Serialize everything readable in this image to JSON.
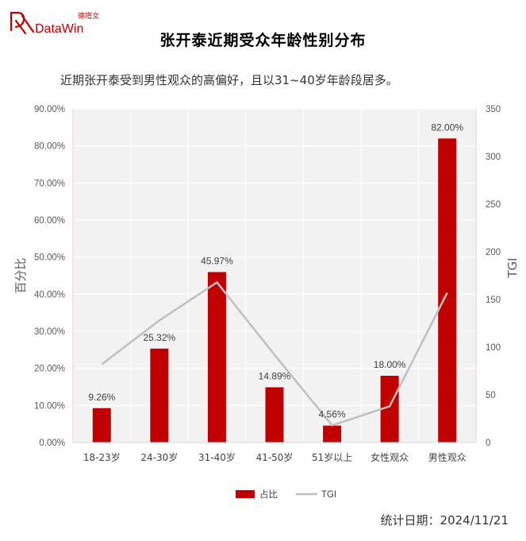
{
  "logo": {
    "brand": "DataWin",
    "cn": "德塔文"
  },
  "header": {
    "title": "张开泰近期受众年龄性别分布",
    "subtitle": "近期张开泰受到男性观众的高偏好，且以31~40岁年龄段居多。"
  },
  "footer": {
    "date_label": "统计日期：2024/11/21"
  },
  "colors": {
    "bar": "#c00000",
    "line": "#bfbfbf",
    "plot_bg": "#f2f2f2",
    "brand": "#c00000"
  },
  "chart_data": {
    "type": "bar",
    "categories": [
      "18-23岁",
      "24-30岁",
      "31-40岁",
      "41-50岁",
      "51岁以上",
      "女性观众",
      "男性观众"
    ],
    "series": [
      {
        "name": "占比",
        "type": "bar",
        "axis": "left",
        "values": [
          9.26,
          25.32,
          45.97,
          14.89,
          4.56,
          18.0,
          82.0
        ],
        "labels": [
          "9.26%",
          "25.32%",
          "45.97%",
          "14.89%",
          "4.56%",
          "18.00%",
          "82.00%"
        ]
      },
      {
        "name": "TGI",
        "type": "line",
        "axis": "right",
        "values": [
          82,
          128,
          168,
          92,
          18,
          38,
          157
        ]
      }
    ],
    "ylabel": "百分比",
    "y2label": "TGI",
    "ylim": [
      0,
      90
    ],
    "y2lim": [
      0,
      350
    ],
    "yticks": [
      "0.00%",
      "10.00%",
      "20.00%",
      "30.00%",
      "40.00%",
      "50.00%",
      "60.00%",
      "70.00%",
      "80.00%",
      "90.00%"
    ],
    "y2ticks": [
      "0",
      "50",
      "100",
      "150",
      "200",
      "250",
      "300",
      "350"
    ],
    "legend": {
      "position": "bottom"
    },
    "grid": true
  }
}
